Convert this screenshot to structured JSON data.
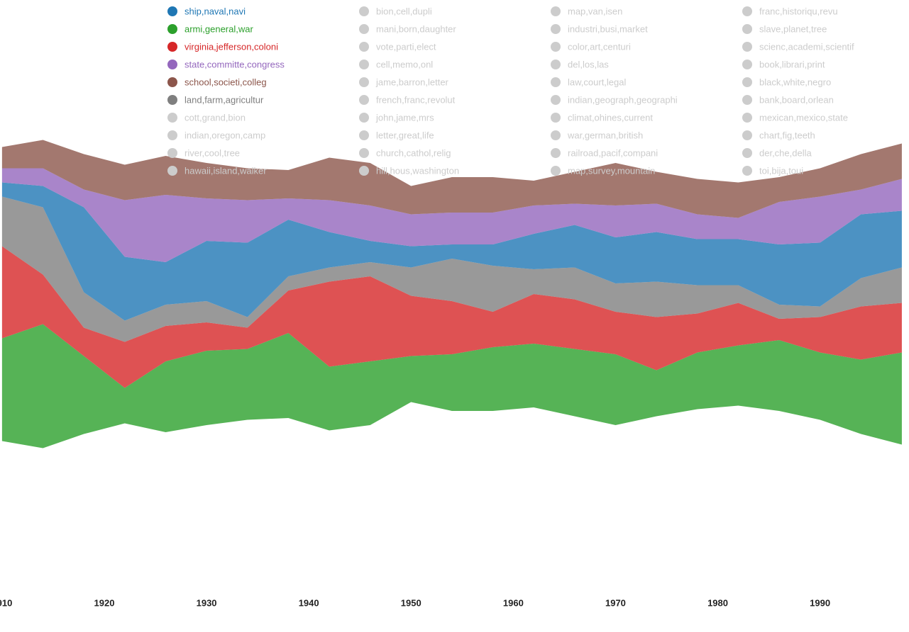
{
  "chart_data": {
    "type": "streamgraph",
    "x": [
      1910,
      1914,
      1918,
      1922,
      1926,
      1930,
      1934,
      1938,
      1942,
      1946,
      1950,
      1954,
      1958,
      1962,
      1966,
      1970,
      1974,
      1978,
      1982,
      1986,
      1990,
      1994,
      1998
    ],
    "xlim": [
      1909.8,
      1998.7
    ],
    "xticks": [
      1910,
      1920,
      1930,
      1940,
      1950,
      1960,
      1970,
      1980,
      1990
    ],
    "series": [
      {
        "name": "ship,naval,navi",
        "color": "#1f77b4",
        "values": [
          20,
          30,
          120,
          90,
          60,
          85,
          105,
          80,
          50,
          30,
          30,
          20,
          30,
          50,
          60,
          65,
          70,
          65,
          65,
          85,
          90,
          90,
          80
        ]
      },
      {
        "name": "armi,general,war",
        "color": "#2ca02c",
        "values": [
          145,
          175,
          110,
          50,
          100,
          105,
          100,
          120,
          90,
          90,
          65,
          80,
          90,
          90,
          95,
          100,
          65,
          80,
          85,
          100,
          95,
          105,
          130
        ]
      },
      {
        "name": "virginia,jefferson,coloni",
        "color": "#d62728",
        "values": [
          130,
          70,
          40,
          65,
          50,
          40,
          30,
          60,
          120,
          120,
          85,
          75,
          50,
          70,
          70,
          60,
          75,
          55,
          60,
          30,
          50,
          75,
          70
        ]
      },
      {
        "name": "state,committe,congress",
        "color": "#9467bd",
        "values": [
          20,
          25,
          25,
          80,
          95,
          60,
          60,
          30,
          45,
          50,
          45,
          45,
          45,
          40,
          30,
          45,
          40,
          35,
          30,
          60,
          65,
          35,
          45
        ]
      },
      {
        "name": "school,societi,colleg",
        "color": "#8c564b",
        "values": [
          30,
          40,
          50,
          50,
          55,
          50,
          45,
          40,
          60,
          60,
          40,
          50,
          50,
          35,
          45,
          60,
          45,
          50,
          50,
          35,
          40,
          50,
          50
        ]
      },
      {
        "name": "land,farm,agricultur",
        "color": "#7f7f7f",
        "values": [
          70,
          95,
          50,
          30,
          30,
          30,
          15,
          20,
          20,
          20,
          40,
          60,
          65,
          35,
          45,
          40,
          50,
          40,
          25,
          20,
          15,
          40,
          50
        ]
      }
    ],
    "stack_order": [
      1,
      2,
      5,
      0,
      3,
      4
    ],
    "inactive_color": "#cccccc",
    "inactive_topics": [
      "cott,grand,bion",
      "indian,oregon,camp",
      "river,cool,tree",
      "hawaii,island,walker",
      "bion,cell,dupli",
      "mani,born,daughter",
      "vote,parti,elect",
      "cell,memo,onl",
      "jame,barron,letter",
      "french,franc,revolut",
      "john,jame,mrs",
      "letter,great,life",
      "church,cathol,relig",
      "hill,hous,washington",
      "map,van,isen",
      "industri,busi,market",
      "color,art,centuri",
      "del,los,las",
      "law,court,legal",
      "indian,geograph,geographi",
      "climat,ohines,current",
      "war,german,british",
      "railroad,pacif,compani",
      "map,survey,mountain",
      "franc,historiqu,revu",
      "slave,planet,tree",
      "scienc,academi,scientif",
      "book,librari,print",
      "black,white,negro",
      "bank,board,orlean",
      "mexican,mexico,state",
      "chart,fig,teeth",
      "der,che,della",
      "toi,bija,toui"
    ]
  }
}
